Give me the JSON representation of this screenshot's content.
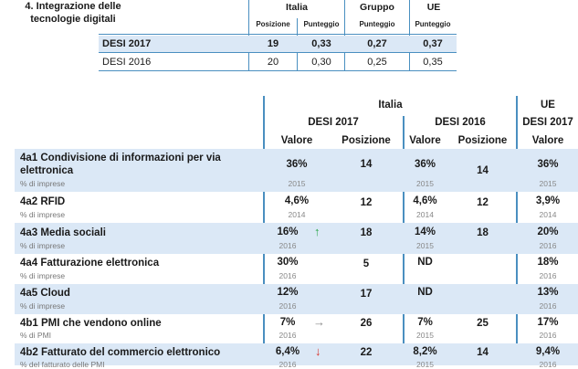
{
  "summary": {
    "title_line1": "4. Integrazione delle",
    "title_line2": "tecnologie digitali",
    "col_italia": "Italia",
    "col_gruppo": "Gruppo",
    "col_ue": "UE",
    "sub_posizione": "Posizione",
    "sub_punteggio_it": "Punteggio",
    "sub_punteggio_gr": "Punteggio",
    "sub_punteggio_ue": "Punteggio",
    "rows": [
      {
        "label": "DESI 2017",
        "pos": "19",
        "score_it": "0,33",
        "score_gr": "0,27",
        "score_ue": "0,37"
      },
      {
        "label": "DESI 2016",
        "pos": "20",
        "score_it": "0,30",
        "score_gr": "0,25",
        "score_ue": "0,35"
      }
    ]
  },
  "detail": {
    "header_italia": "Italia",
    "header_desi2017": "DESI 2017",
    "header_desi2016": "DESI 2016",
    "header_ue": "UE",
    "header_ue_desi2017": "DESI 2017",
    "col_valore_1": "Valore",
    "col_posizione_1": "Posizione",
    "col_valore_2": "Valore",
    "col_posizione_2": "Posizione",
    "col_valore_ue": "Valore",
    "rows": [
      {
        "label1": "4a1 Condivisione di informazioni per via",
        "label2": "elettronica",
        "unit": "% di imprese",
        "v17": "36%",
        "y17": "2015",
        "p17": "14",
        "v16": "36%",
        "y16": "2015",
        "p16": "14",
        "vue": "36%",
        "yue": "2015",
        "arrow": ""
      },
      {
        "label1": "4a2 RFID",
        "label2": "",
        "unit": "% di imprese",
        "v17": "4,6%",
        "y17": "2014",
        "p17": "12",
        "v16": "4,6%",
        "y16": "2014",
        "p16": "12",
        "vue": "3,9%",
        "yue": "2014",
        "arrow": ""
      },
      {
        "label1": "4a3 Media sociali",
        "label2": "",
        "unit": "% di imprese",
        "v17": "16%",
        "y17": "2016",
        "p17": "18",
        "v16": "14%",
        "y16": "2015",
        "p16": "18",
        "vue": "20%",
        "yue": "2016",
        "arrow": "↑"
      },
      {
        "label1": "4a4 Fatturazione elettronica",
        "label2": "",
        "unit": "% di imprese",
        "v17": "30%",
        "y17": "2016",
        "p17": "5",
        "v16": "ND",
        "y16": "",
        "p16": "",
        "vue": "18%",
        "yue": "2016",
        "arrow": ""
      },
      {
        "label1": "4a5 Cloud",
        "label2": "",
        "unit": "% di imprese",
        "v17": "12%",
        "y17": "2016",
        "p17": "17",
        "v16": "ND",
        "y16": "",
        "p16": "",
        "vue": "13%",
        "yue": "2016",
        "arrow": ""
      },
      {
        "label1": "4b1 PMI che vendono online",
        "label2": "",
        "unit": "% di PMI",
        "v17": "7%",
        "y17": "2016",
        "p17": "26",
        "v16": "7%",
        "y16": "2015",
        "p16": "25",
        "vue": "17%",
        "yue": "2016",
        "arrow": "→"
      },
      {
        "label1": "4b2 Fatturato del commercio elettronico",
        "label2": "",
        "unit": "% del fatturato delle PMI",
        "v17": "6,4%",
        "y17": "2016",
        "p17": "22",
        "v16": "8,2%",
        "y16": "2015",
        "p16": "14",
        "vue": "9,4%",
        "yue": "2016",
        "arrow": "↓"
      }
    ]
  },
  "colors": {
    "band": "#dbe8f6",
    "line": "#4a8fc0",
    "up": "#2aa84a",
    "flat": "#8a8a8a",
    "down": "#d9342b"
  }
}
